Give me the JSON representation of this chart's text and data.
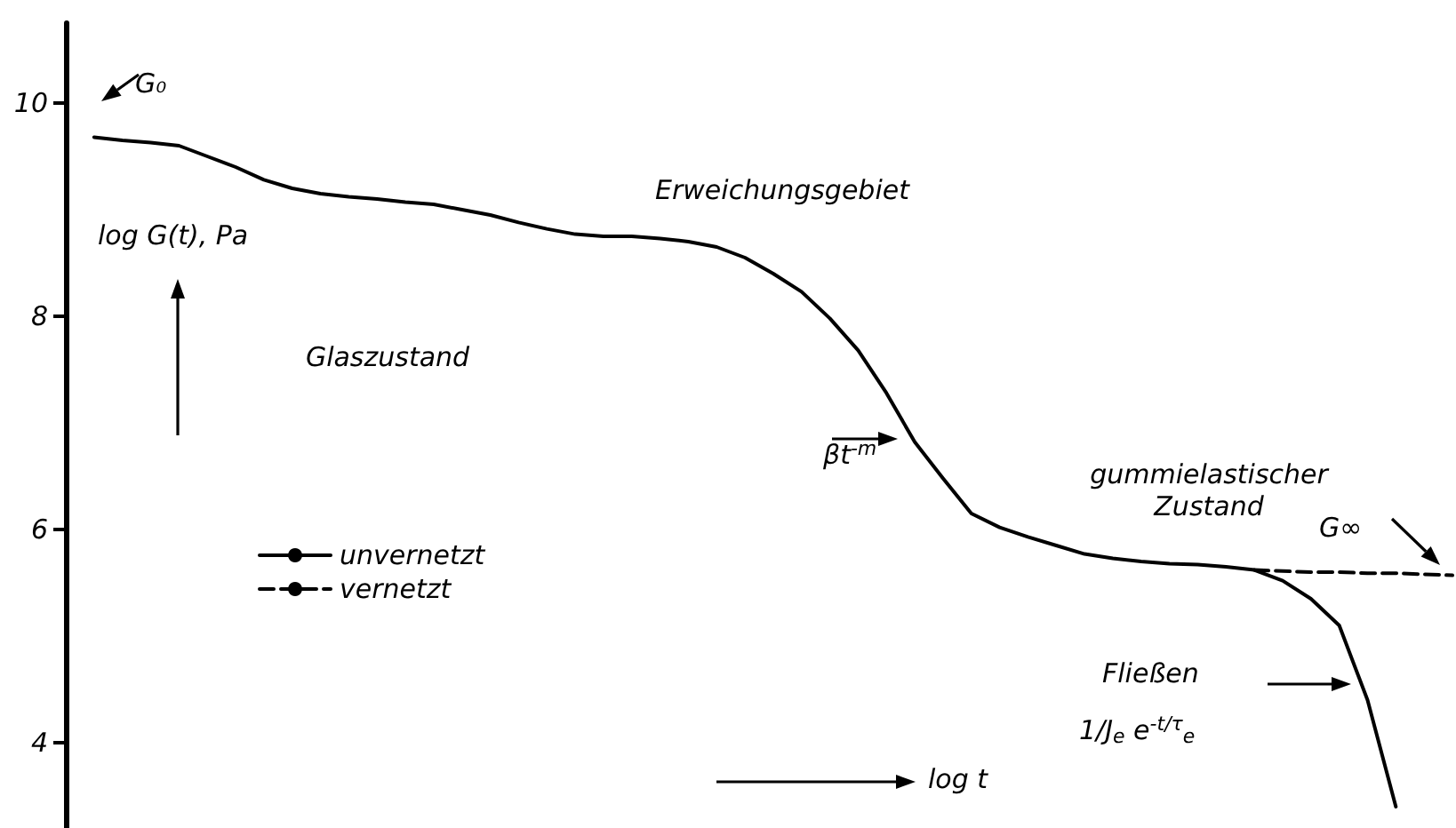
{
  "chart_data": {
    "type": "line",
    "ylabel": "log G(t), Pa",
    "xlabel": "log t",
    "annotations": [
      "G₀",
      "Erweichungsgebiet",
      "Glaszustand",
      "βt$^{-m}$",
      "gummielastischer\nZustand",
      "G∞",
      "Fließen",
      "1/J$_{e}$ e$^{-t/τ}$$_{e}$"
    ],
    "categories": [
      null,
      null,
      null,
      null,
      null,
      null,
      null,
      null,
      null,
      null,
      null,
      null,
      null,
      null,
      null,
      null,
      null,
      null,
      null,
      null,
      null,
      null,
      null,
      null,
      null,
      null,
      null,
      null,
      null,
      null,
      null,
      null,
      null,
      null,
      null,
      null,
      null,
      null,
      null,
      null,
      null,
      null,
      null,
      null,
      null,
      null,
      null,
      null,
      null,
      null
    ],
    "series": [
      {
        "name": "unvernetzt",
        "color": "#000000",
        "line_style": "solid",
        "values": [
          null,
          9.68,
          9.65,
          9.63,
          9.6,
          9.5,
          9.4,
          9.28,
          9.2,
          9.15,
          9.12,
          9.1,
          9.07,
          9.05,
          9.0,
          8.95,
          8.88,
          8.82,
          8.77,
          8.75,
          8.75,
          8.73,
          8.7,
          8.65,
          8.55,
          8.4,
          8.23,
          7.98,
          7.68,
          7.28,
          6.82,
          6.48,
          6.15,
          6.02,
          5.93,
          5.85,
          5.77,
          5.73,
          5.7,
          5.68,
          5.67,
          5.65,
          5.62,
          5.52,
          5.35,
          5.1,
          4.4,
          3.4,
          null,
          null
        ]
      },
      {
        "name": "vernetzt",
        "color": "#000000",
        "line_style": "dashed",
        "values": [
          null,
          null,
          null,
          null,
          null,
          null,
          null,
          null,
          null,
          null,
          null,
          null,
          null,
          null,
          null,
          null,
          null,
          null,
          null,
          null,
          null,
          null,
          null,
          null,
          null,
          null,
          null,
          null,
          null,
          null,
          null,
          null,
          null,
          null,
          null,
          null,
          null,
          null,
          null,
          null,
          null,
          null,
          5.62,
          5.61,
          5.6,
          5.6,
          5.59,
          5.59,
          5.58,
          5.57
        ]
      }
    ],
    "ylim": [
      3.2,
      10.75
    ],
    "yticks": [
      4,
      6,
      8,
      10
    ],
    "legend": "left",
    "marker": "none",
    "tick_labels": "y"
  }
}
